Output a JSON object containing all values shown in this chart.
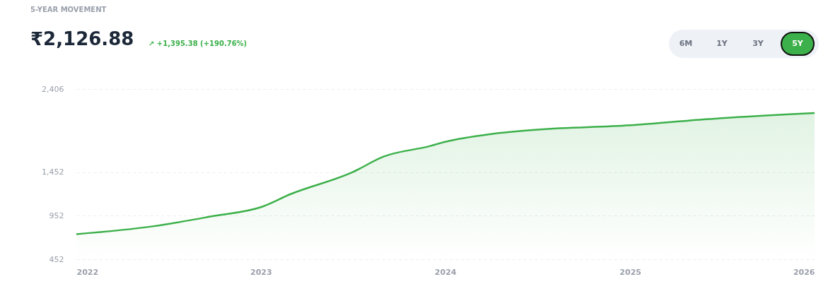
{
  "chart_data": {
    "type": "area",
    "title": "5-YEAR MOVEMENT",
    "annotations": [
      "₹2,126.88",
      "↗ +1,395.38 (+190.76%)",
      "6M",
      "1Y",
      "3Y",
      "5Y"
    ],
    "x": [
      "2022-01",
      "2022-06",
      "2022-10",
      "2023-01",
      "2023-03",
      "2023-07",
      "2023-09",
      "2023-12",
      "2024-01",
      "2024-04",
      "2024-07",
      "2025-01",
      "2025-06",
      "2026-01"
    ],
    "series": [
      {
        "color": "#3cb04a",
        "values": [
          740,
          830,
          950,
          1050,
          1200,
          1450,
          1630,
          1750,
          1800,
          1890,
          1940,
          1990,
          2060,
          2130
        ]
      }
    ],
    "ylim": [
      452,
      2406
    ],
    "yticks": [
      452,
      952,
      {
        "value": 1452,
        "label": "1,452"
      },
      {
        "value": 2406,
        "label": "2,406"
      }
    ],
    "xlim": [
      "2022",
      "2026"
    ],
    "xticks": [
      "2022",
      "2023",
      "2024",
      "2025",
      "2026"
    ],
    "grid": "y"
  }
}
